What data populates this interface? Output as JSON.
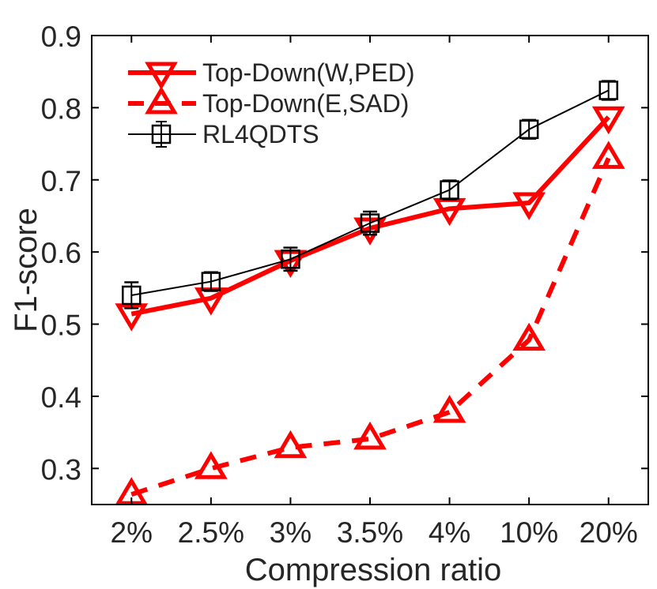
{
  "figure": {
    "background": "#ffffff",
    "axis_color": "#000000",
    "text_color": "#262626",
    "accent_red": "#ff0000"
  },
  "chart_data": {
    "type": "line",
    "title": "",
    "xlabel": "Compression ratio",
    "ylabel": "F1-score",
    "categories": [
      "2%",
      "2.5%",
      "3%",
      "3.5%",
      "4%",
      "10%",
      "20%"
    ],
    "ylim": [
      0.25,
      0.9
    ],
    "yticks": [
      0.3,
      0.4,
      0.5,
      0.6,
      0.7,
      0.8,
      0.9
    ],
    "grid": false,
    "box": true,
    "tick_direction": "in",
    "legend_position": "top-left-inside",
    "series": [
      {
        "name": "Top-Down(W,PED)",
        "color": "#ff0000",
        "line_style": "solid",
        "line_width": 6,
        "marker": "triangle-down",
        "values": [
          0.514,
          0.536,
          0.588,
          0.633,
          0.66,
          0.668,
          0.787
        ]
      },
      {
        "name": "Top-Down(E,SAD)",
        "color": "#ff0000",
        "line_style": "dashed",
        "line_width": 6,
        "marker": "triangle-up",
        "values": [
          0.264,
          0.3,
          0.329,
          0.341,
          0.378,
          0.478,
          0.73
        ]
      },
      {
        "name": "RL4QDTS",
        "color": "#000000",
        "line_style": "solid",
        "line_width": 2,
        "marker": "square",
        "values": [
          0.54,
          0.559,
          0.59,
          0.64,
          0.686,
          0.77,
          0.824
        ],
        "errors": [
          0.018,
          0.013,
          0.016,
          0.016,
          0.013,
          0.013,
          0.013
        ]
      }
    ]
  }
}
